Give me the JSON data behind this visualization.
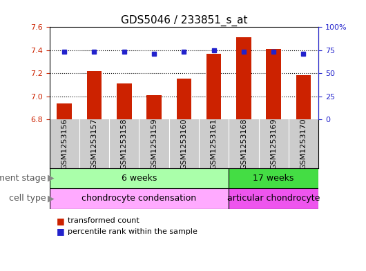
{
  "title": "GDS5046 / 233851_s_at",
  "samples": [
    "GSM1253156",
    "GSM1253157",
    "GSM1253158",
    "GSM1253159",
    "GSM1253160",
    "GSM1253161",
    "GSM1253168",
    "GSM1253169",
    "GSM1253170"
  ],
  "transformed_counts": [
    6.94,
    7.22,
    7.11,
    7.01,
    7.15,
    7.37,
    7.51,
    7.41,
    7.18
  ],
  "percentile_ranks": [
    73,
    73,
    73,
    71,
    73,
    75,
    73,
    73,
    71
  ],
  "ylim_left": [
    6.8,
    7.6
  ],
  "ylim_right": [
    0,
    100
  ],
  "yticks_left": [
    6.8,
    7.0,
    7.2,
    7.4,
    7.6
  ],
  "yticks_right": [
    0,
    25,
    50,
    75,
    100
  ],
  "ytick_labels_right": [
    "0",
    "25",
    "50",
    "75",
    "100%"
  ],
  "bar_color": "#cc2200",
  "dot_color": "#2222cc",
  "bar_bottom": 6.8,
  "development_stages": [
    {
      "label": "6 weeks",
      "start": 0,
      "end": 6,
      "color": "#aaffaa"
    },
    {
      "label": "17 weeks",
      "start": 6,
      "end": 9,
      "color": "#44dd44"
    }
  ],
  "cell_types": [
    {
      "label": "chondrocyte condensation",
      "start": 0,
      "end": 6,
      "color": "#ffaaff"
    },
    {
      "label": "articular chondrocyte",
      "start": 6,
      "end": 9,
      "color": "#ee55ee"
    }
  ],
  "dev_stage_label": "development stage",
  "cell_type_label": "cell type",
  "legend_items": [
    {
      "color": "#cc2200",
      "label": "transformed count"
    },
    {
      "color": "#2222cc",
      "label": "percentile rank within the sample"
    }
  ],
  "xtick_bg_color": "#cccccc",
  "bg_color": "#ffffff",
  "plot_bg_color": "#ffffff",
  "title_fontsize": 11,
  "tick_fontsize": 8,
  "label_fontsize": 9
}
